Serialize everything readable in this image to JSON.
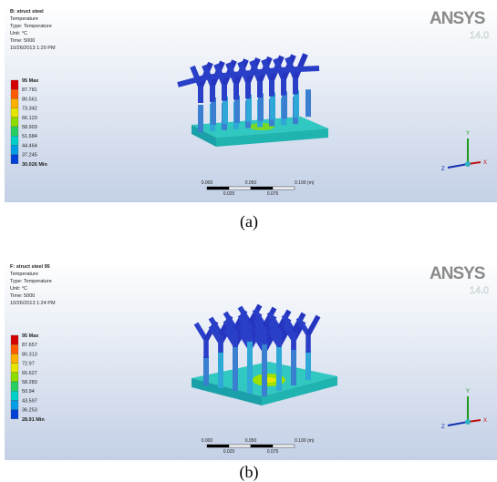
{
  "panels": [
    {
      "info": [
        "B: struct steel",
        "Temperature",
        "Type: Temperature",
        "Unit: °C",
        "Time: 5000",
        "10/26/2013 1:20 PM"
      ],
      "legend": [
        "95 Max",
        "87.781",
        "80.561",
        "73.342",
        "66.123",
        "58.903",
        "51.684",
        "44.464",
        "37.245",
        "30.026 Min"
      ],
      "logo": "ANSYS",
      "version": "14.0",
      "scale_top": [
        "0.000",
        "0.050",
        "0.100 (m)"
      ],
      "scale_bottom": [
        "0.025",
        "0.075"
      ],
      "axes": [
        "Y",
        "Z",
        "X"
      ],
      "caption": "(a)"
    },
    {
      "info": [
        "F: struct steel 95",
        "Temperature",
        "Type: Temperature",
        "Unit: °C",
        "Time: 5000",
        "10/26/2013 1:24 PM"
      ],
      "legend": [
        "95 Max",
        "87.657",
        "80.313",
        "72.97",
        "65.627",
        "58.283",
        "50.94",
        "43.597",
        "36.253",
        "28.91 Min"
      ],
      "logo": "ANSYS",
      "version": "14.0",
      "scale_top": [
        "0.000",
        "0.050",
        "0.100 (m)"
      ],
      "scale_bottom": [
        "0.025",
        "0.075"
      ],
      "axes": [
        "Y",
        "Z",
        "X"
      ],
      "caption": "(b)"
    }
  ]
}
